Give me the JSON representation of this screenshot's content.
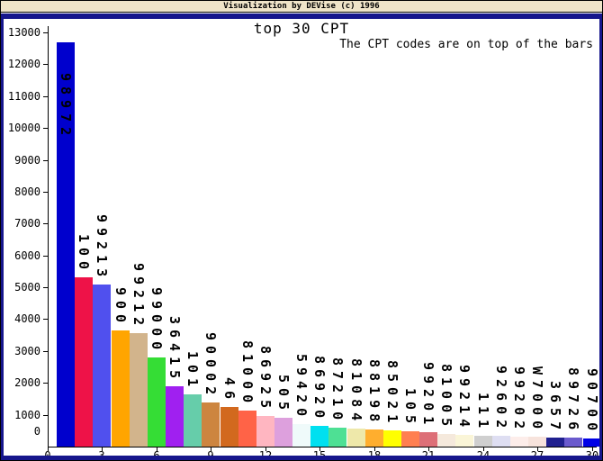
{
  "window": {
    "titlebar_text": "Visualization by DEVise (c) 1996",
    "chrome_colors": {
      "titlebar_bg": "#EFE4C8",
      "border": "#16168C",
      "background": "#FFFFFF"
    }
  },
  "chart_data": {
    "type": "bar",
    "title": "top 30 CPT",
    "annotation": "The CPT codes are on top of the bars",
    "xlabel": "",
    "ylabel": "",
    "xlim": [
      0,
      30
    ],
    "ylim": [
      0,
      13000
    ],
    "x_ticks": [
      0,
      3,
      6,
      9,
      12,
      15,
      18,
      21,
      24,
      27,
      30
    ],
    "y_ticks": [
      0,
      1000,
      2000,
      3000,
      4000,
      5000,
      6000,
      7000,
      8000,
      9000,
      10000,
      11000,
      12000,
      13000
    ],
    "grid": false,
    "legend": "none",
    "bar_labels_position": "on top of bars, rotated 90deg",
    "categories": [
      "98972",
      "100",
      "99213",
      "900",
      "99212",
      "99000",
      "36415",
      "101",
      "90002",
      "46",
      "81000",
      "86925",
      "505",
      "59420",
      "86920",
      "87210",
      "81084",
      "88198",
      "85021",
      "105",
      "99201",
      "81005",
      "99214",
      "111",
      "92602",
      "99202",
      "W7000",
      "3657",
      "89726",
      "90700"
    ],
    "values": [
      12700,
      5300,
      5100,
      3650,
      3550,
      2800,
      1880,
      1630,
      1380,
      1240,
      1120,
      950,
      900,
      720,
      660,
      590,
      560,
      530,
      505,
      480,
      450,
      390,
      370,
      350,
      330,
      320,
      300,
      290,
      280,
      260
    ],
    "bar_colors": [
      "#0000CD",
      "#EE1248",
      "#5050EE",
      "#FFA500",
      "#D2B48C",
      "#35DD35",
      "#A020F0",
      "#66CDAA",
      "#CD853F",
      "#D2691E",
      "#FF6347",
      "#FFB6C1",
      "#DDA0DD",
      "#EFFAFA",
      "#00E0F0",
      "#4EE094",
      "#EEE8AA",
      "#FFAE2E",
      "#FFFF00",
      "#FF7F50",
      "#DD6F77",
      "#F5E9DC",
      "#FAF5D7",
      "#CFCFCF",
      "#DEDEF2",
      "#FDEDEA",
      "#F7E3DC",
      "#20208F",
      "#6A5ACD",
      "#0000E6"
    ],
    "axis_color": "#000000",
    "text_color": "#000000"
  }
}
